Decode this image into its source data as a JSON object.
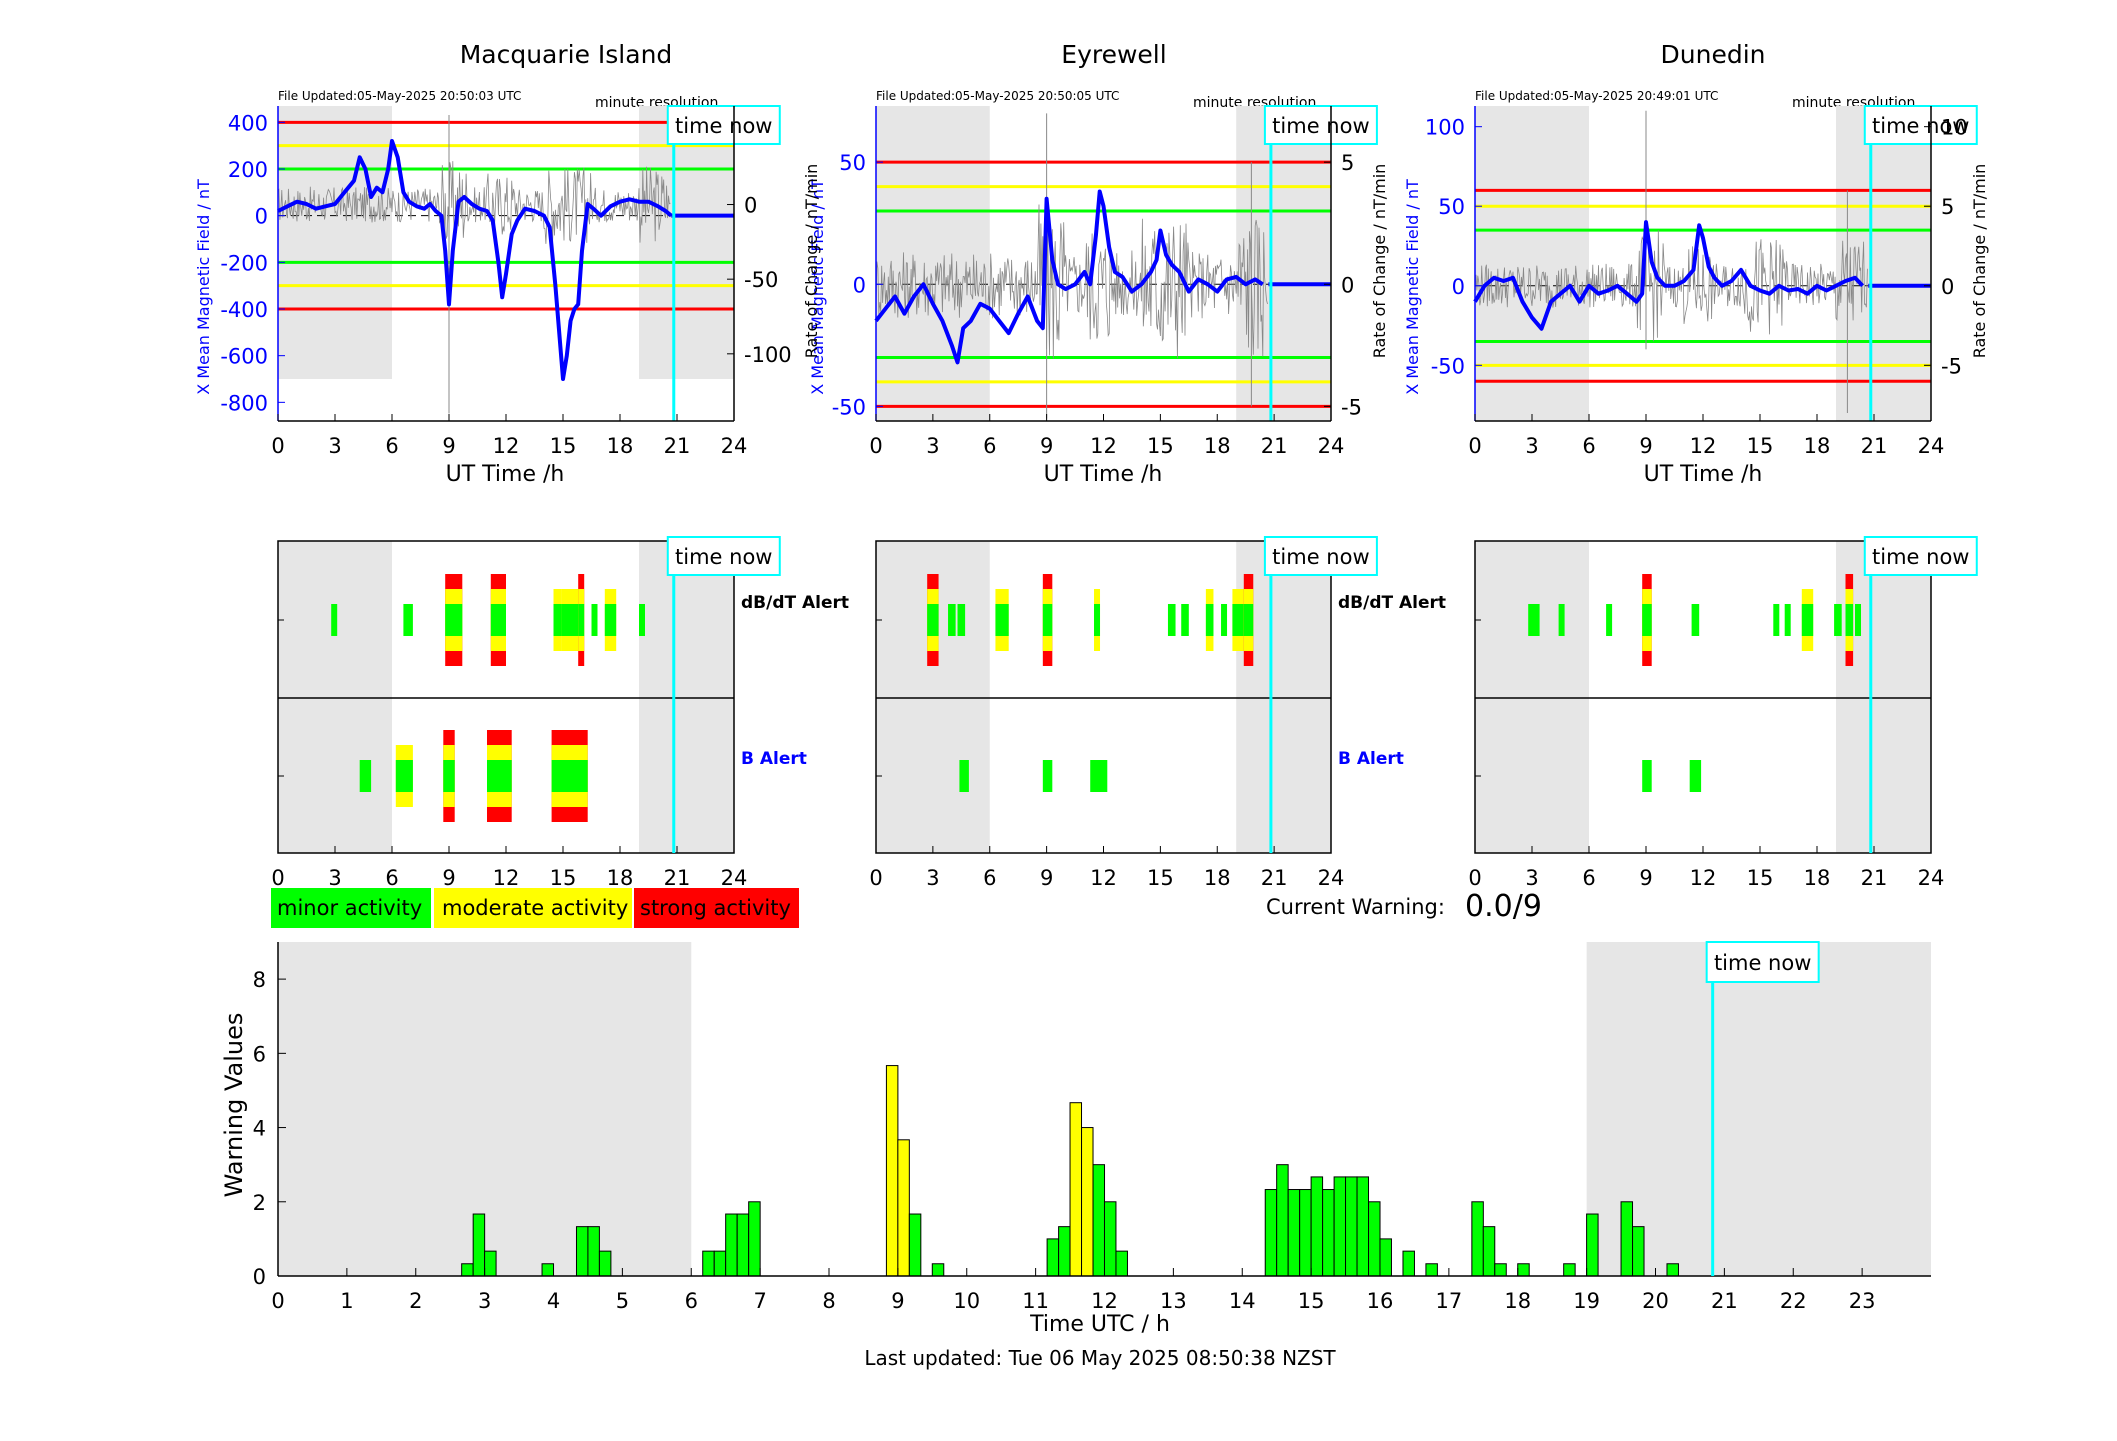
{
  "stations": [
    {
      "title": "Macquarie Island",
      "file_updated": "File Updated:05-May-2025 20:50:03 UTC",
      "resolution": "minute resolution",
      "time_now_label": "time now",
      "ylabel_left": "X Mean Magnetic Field / nT",
      "ylabel_right": "Rate of Change / nT/min",
      "xlabel": "UT Time /h",
      "left_ticks": [
        400,
        200,
        0,
        -200,
        -400,
        -600,
        -800
      ],
      "right_ticks": [
        0,
        -50,
        -100
      ],
      "x_ticks": [
        0,
        3,
        6,
        9,
        12,
        15,
        18,
        21,
        24
      ]
    },
    {
      "title": "Eyrewell",
      "file_updated": "File Updated:05-May-2025 20:50:05 UTC",
      "resolution": "minute resolution",
      "time_now_label": "time now",
      "ylabel_left": "X Mean Magnetic Field / nT",
      "ylabel_right": "Rate of Change / nT/min",
      "xlabel": "UT Time /h",
      "left_ticks": [
        50,
        0,
        -50
      ],
      "right_ticks": [
        5,
        0,
        -5
      ],
      "x_ticks": [
        0,
        3,
        6,
        9,
        12,
        15,
        18,
        21,
        24
      ]
    },
    {
      "title": "Dunedin",
      "file_updated": "File Updated:05-May-2025 20:49:01 UTC",
      "resolution": "minute resolution",
      "time_now_label": "time now",
      "ylabel_left": "X Mean Magnetic Field / nT",
      "ylabel_right": "Rate of Change / nT/min",
      "xlabel": "UT Time /h",
      "left_ticks": [
        100,
        50,
        0,
        -50
      ],
      "right_ticks": [
        10,
        5,
        0,
        -5
      ],
      "x_ticks": [
        0,
        3,
        6,
        9,
        12,
        15,
        18,
        21,
        24
      ]
    }
  ],
  "alerts": {
    "dbdt_label": "dB/dT Alert",
    "b_label": "B Alert",
    "time_now_label": "time now",
    "x_ticks": [
      0,
      3,
      6,
      9,
      12,
      15,
      18,
      21,
      24
    ]
  },
  "legend": {
    "minor": "minor activity",
    "moderate": "moderate activity",
    "strong": "strong activity"
  },
  "current_warning": {
    "label": "Current Warning:",
    "value": "0.0/9"
  },
  "warning_chart": {
    "ylabel": "Warning Values",
    "xlabel": "Time UTC / h",
    "time_now_label": "time now",
    "y_ticks": [
      0,
      2,
      4,
      6,
      8
    ],
    "x_ticks": [
      0,
      1,
      2,
      3,
      4,
      5,
      6,
      7,
      8,
      9,
      10,
      11,
      12,
      13,
      14,
      15,
      16,
      17,
      18,
      19,
      20,
      21,
      22,
      23
    ]
  },
  "footer": {
    "last_updated": "Last updated: Tue 06 May 2025 08:50:38 NZST"
  },
  "colors": {
    "minor": "#00ff00",
    "moderate": "#ffff00",
    "strong": "#ff0000",
    "time_now": "#00ffff",
    "series": "#0000ff",
    "shade": "#e6e6e6"
  },
  "chart_data": [
    {
      "type": "line",
      "title": "Macquarie Island",
      "xlabel": "UT Time /h",
      "ylabel": "X Mean Magnetic Field / nT",
      "ylabel_right": "Rate of Change / nT/min",
      "xlim": [
        0,
        24
      ],
      "ylim": [
        -880,
        470
      ],
      "ylim_right": [
        -145,
        66
      ],
      "time_now": 20.83,
      "shaded": [
        [
          0,
          6
        ],
        [
          19,
          24
        ]
      ],
      "thresholds": {
        "red": [
          400,
          -400
        ],
        "yellow": [
          300,
          -300
        ],
        "green": [
          200,
          -200
        ]
      },
      "series": [
        {
          "x": [
            0,
            0.5,
            1,
            1.5,
            2,
            2.5,
            3,
            3.5,
            4,
            4.3,
            4.6,
            4.9,
            5.2,
            5.5,
            5.8,
            6,
            6.3,
            6.6,
            6.9,
            7.3,
            7.7,
            8,
            8.3,
            8.6,
            8.8,
            9,
            9.2,
            9.5,
            9.8,
            10.2,
            10.6,
            11,
            11.3,
            11.6,
            11.8,
            12,
            12.3,
            12.6,
            13,
            13.5,
            14,
            14.3,
            14.6,
            14.8,
            15,
            15.2,
            15.4,
            15.6,
            15.8,
            16,
            16.3,
            16.6,
            17,
            17.5,
            18,
            18.5,
            19,
            19.5,
            20,
            20.4,
            20.7
          ],
          "y": [
            20,
            40,
            60,
            50,
            30,
            40,
            50,
            100,
            150,
            250,
            200,
            80,
            120,
            100,
            200,
            320,
            250,
            100,
            60,
            40,
            30,
            50,
            20,
            0,
            -150,
            -380,
            -150,
            60,
            80,
            50,
            30,
            20,
            -20,
            -200,
            -350,
            -250,
            -80,
            -20,
            30,
            20,
            0,
            -50,
            -300,
            -500,
            -700,
            -600,
            -450,
            -400,
            -380,
            -150,
            50,
            30,
            0,
            40,
            60,
            70,
            60,
            60,
            40,
            20,
            0
          ]
        }
      ]
    },
    {
      "type": "line",
      "title": "Eyrewell",
      "xlabel": "UT Time /h",
      "ylabel": "X Mean Magnetic Field / nT",
      "ylabel_right": "Rate of Change / nT/min",
      "xlim": [
        0,
        24
      ],
      "ylim": [
        -56,
        73
      ],
      "ylim_right": [
        -5.6,
        7.3
      ],
      "time_now": 20.83,
      "shaded": [
        [
          0,
          6
        ],
        [
          19,
          24
        ]
      ],
      "thresholds": {
        "red": [
          50,
          -50
        ],
        "yellow": [
          40,
          -40
        ],
        "green": [
          30,
          -30
        ]
      },
      "series": [
        {
          "x": [
            0,
            0.5,
            1,
            1.5,
            2,
            2.5,
            3,
            3.5,
            4,
            4.3,
            4.6,
            5,
            5.5,
            6,
            6.5,
            7,
            7.5,
            8,
            8.5,
            8.8,
            9,
            9.3,
            9.6,
            10,
            10.5,
            11,
            11.3,
            11.6,
            11.8,
            12,
            12.3,
            12.6,
            13,
            13.5,
            14,
            14.5,
            14.8,
            15,
            15.3,
            15.6,
            16,
            16.5,
            17,
            17.5,
            18,
            18.5,
            19,
            19.5,
            20,
            20.4
          ],
          "y": [
            -15,
            -10,
            -5,
            -12,
            -5,
            0,
            -8,
            -15,
            -25,
            -32,
            -18,
            -15,
            -8,
            -10,
            -15,
            -20,
            -12,
            -5,
            -15,
            -18,
            35,
            10,
            0,
            -2,
            0,
            5,
            0,
            20,
            38,
            32,
            15,
            5,
            3,
            -3,
            0,
            5,
            10,
            22,
            12,
            8,
            5,
            -3,
            2,
            0,
            -3,
            2,
            3,
            0,
            2,
            0
          ]
        }
      ]
    },
    {
      "type": "line",
      "title": "Dunedin",
      "xlabel": "UT Time /h",
      "ylabel": "X Mean Magnetic Field / nT",
      "ylabel_right": "Rate of Change / nT/min",
      "xlim": [
        0,
        24
      ],
      "ylim": [
        -85,
        113
      ],
      "ylim_right": [
        -8.5,
        11.3
      ],
      "time_now": 20.83,
      "shaded": [
        [
          0,
          6
        ],
        [
          19,
          24
        ]
      ],
      "thresholds": {
        "red": [
          60,
          -60
        ],
        "yellow": [
          50,
          -50
        ],
        "green": [
          35,
          -35
        ]
      },
      "series": [
        {
          "x": [
            0,
            0.5,
            1,
            1.5,
            2,
            2.5,
            3,
            3.5,
            4,
            4.5,
            5,
            5.5,
            6,
            6.5,
            7,
            7.5,
            8,
            8.5,
            8.8,
            9,
            9.3,
            9.6,
            10,
            10.5,
            11,
            11.5,
            11.8,
            12,
            12.3,
            12.6,
            13,
            13.5,
            14,
            14.5,
            15,
            15.5,
            16,
            16.5,
            17,
            17.5,
            18,
            18.5,
            19,
            19.5,
            20,
            20.4
          ],
          "y": [
            -10,
            0,
            5,
            3,
            5,
            -10,
            -20,
            -27,
            -10,
            -5,
            0,
            -10,
            0,
            -5,
            -3,
            0,
            -5,
            -10,
            -5,
            40,
            15,
            5,
            0,
            0,
            3,
            10,
            38,
            30,
            12,
            5,
            0,
            3,
            10,
            0,
            -3,
            -5,
            0,
            -3,
            -2,
            -5,
            0,
            -3,
            0,
            3,
            5,
            0
          ]
        }
      ]
    },
    {
      "type": "bar",
      "title": "",
      "xlabel": "Time UTC / h",
      "ylabel": "Warning Values",
      "xlim": [
        0,
        24
      ],
      "ylim": [
        0,
        9
      ],
      "time_now": 20.83,
      "shaded": [
        [
          0,
          6
        ],
        [
          19,
          24
        ]
      ],
      "bin_width_h": 0.1667,
      "x": [
        2.75,
        2.917,
        3.083,
        3.917,
        4.417,
        4.583,
        4.75,
        6.25,
        6.417,
        6.583,
        6.75,
        6.917,
        8.917,
        9.083,
        9.25,
        9.583,
        11.25,
        11.417,
        11.583,
        11.75,
        11.917,
        12.083,
        12.25,
        14.417,
        14.583,
        14.75,
        14.917,
        15.083,
        15.25,
        15.417,
        15.583,
        15.75,
        15.917,
        16.083,
        16.417,
        16.75,
        17.417,
        17.583,
        17.75,
        18.083,
        18.75,
        19.083,
        19.583,
        19.75,
        20.25
      ],
      "values": [
        0.33,
        1.67,
        0.67,
        0.33,
        1.33,
        1.33,
        0.67,
        0.67,
        0.67,
        1.67,
        1.67,
        2.0,
        5.67,
        3.67,
        1.67,
        0.33,
        1.0,
        1.33,
        4.67,
        4.0,
        3.0,
        2.0,
        0.67,
        2.33,
        3.0,
        2.33,
        2.33,
        2.67,
        2.33,
        2.67,
        2.67,
        2.67,
        2.0,
        1.0,
        0.67,
        0.33,
        2.0,
        1.33,
        0.33,
        0.33,
        0.33,
        1.67,
        2.0,
        1.33,
        0.33
      ],
      "levels": [
        "minor",
        "minor",
        "minor",
        "minor",
        "minor",
        "minor",
        "minor",
        "minor",
        "minor",
        "minor",
        "minor",
        "minor",
        "moderate",
        "moderate",
        "minor",
        "minor",
        "minor",
        "minor",
        "moderate",
        "moderate",
        "minor",
        "minor",
        "minor",
        "minor",
        "minor",
        "minor",
        "minor",
        "minor",
        "minor",
        "minor",
        "minor",
        "minor",
        "minor",
        "minor",
        "minor",
        "minor",
        "minor",
        "minor",
        "minor",
        "minor",
        "minor",
        "minor",
        "minor",
        "minor",
        "minor"
      ]
    },
    {
      "type": "heatmap",
      "title": "dB/dT Alert and B Alert timelines",
      "xlabel": "",
      "xlim": [
        0,
        24
      ],
      "stations": [
        {
          "name": "Macquarie Island",
          "dbdt": [
            [
              2.8,
              3.1,
              1
            ],
            [
              6.6,
              7.1,
              1
            ],
            [
              8.8,
              9.7,
              3
            ],
            [
              11.2,
              12.0,
              3
            ],
            [
              14.5,
              14.9,
              2
            ],
            [
              14.9,
              15.8,
              2
            ],
            [
              15.8,
              16.1,
              3
            ],
            [
              16.5,
              16.8,
              1
            ],
            [
              17.2,
              17.8,
              2
            ],
            [
              19.0,
              19.3,
              1
            ]
          ],
          "b": [
            [
              4.3,
              4.9,
              1
            ],
            [
              6.2,
              7.1,
              2
            ],
            [
              8.7,
              9.3,
              3
            ],
            [
              11.0,
              12.3,
              3
            ],
            [
              14.4,
              16.3,
              3
            ]
          ]
        },
        {
          "name": "Eyrewell",
          "dbdt": [
            [
              2.7,
              3.3,
              3
            ],
            [
              3.8,
              4.2,
              1
            ],
            [
              4.3,
              4.7,
              1
            ],
            [
              6.3,
              7.0,
              2
            ],
            [
              8.8,
              9.3,
              3
            ],
            [
              11.5,
              11.8,
              2
            ],
            [
              15.4,
              15.8,
              1
            ],
            [
              16.1,
              16.5,
              1
            ],
            [
              17.4,
              17.8,
              2
            ],
            [
              18.2,
              18.5,
              1
            ],
            [
              18.8,
              19.4,
              2
            ],
            [
              19.4,
              19.9,
              3
            ]
          ],
          "b": [
            [
              4.4,
              4.9,
              1
            ],
            [
              8.8,
              9.3,
              1
            ],
            [
              11.3,
              12.2,
              1
            ]
          ]
        },
        {
          "name": "Dunedin",
          "dbdt": [
            [
              2.8,
              3.4,
              1
            ],
            [
              4.4,
              4.7,
              1
            ],
            [
              6.9,
              7.2,
              1
            ],
            [
              8.8,
              9.3,
              3
            ],
            [
              11.4,
              11.8,
              1
            ],
            [
              15.7,
              16.0,
              1
            ],
            [
              16.3,
              16.6,
              1
            ],
            [
              17.2,
              17.8,
              2
            ],
            [
              18.9,
              19.3,
              1
            ],
            [
              19.5,
              19.9,
              3
            ],
            [
              20.0,
              20.3,
              1
            ]
          ],
          "b": [
            [
              8.8,
              9.3,
              1
            ],
            [
              11.3,
              11.9,
              1
            ]
          ]
        }
      ]
    }
  ]
}
